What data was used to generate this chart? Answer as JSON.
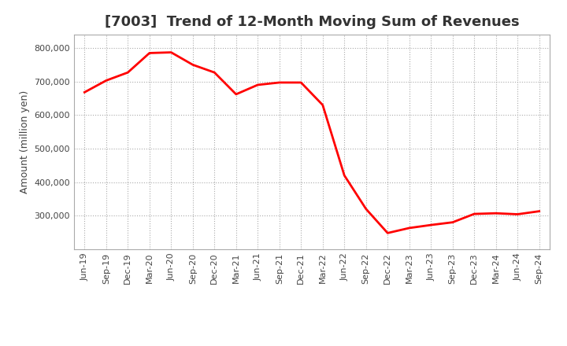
{
  "title": "[7003]  Trend of 12-Month Moving Sum of Revenues",
  "ylabel": "Amount (million yen)",
  "line_color": "#FF0000",
  "line_width": 2.0,
  "background_color": "#FFFFFF",
  "grid_color": "#AAAAAA",
  "xlabels": [
    "Jun-19",
    "Sep-19",
    "Dec-19",
    "Mar-20",
    "Jun-20",
    "Sep-20",
    "Dec-20",
    "Mar-21",
    "Jun-21",
    "Sep-21",
    "Dec-21",
    "Mar-22",
    "Jun-22",
    "Sep-22",
    "Dec-22",
    "Mar-23",
    "Jun-23",
    "Sep-23",
    "Dec-23",
    "Mar-24",
    "Jun-24",
    "Sep-24"
  ],
  "values": [
    668000,
    703000,
    727000,
    785000,
    787000,
    750000,
    727000,
    662000,
    690000,
    697000,
    697000,
    630000,
    420000,
    320000,
    248000,
    263000,
    272000,
    280000,
    305000,
    307000,
    304000,
    313000
  ],
  "ylim": [
    200000,
    840000
  ],
  "yticks": [
    300000,
    400000,
    500000,
    600000,
    700000,
    800000
  ],
  "title_fontsize": 13,
  "tick_fontsize": 8,
  "ylabel_fontsize": 9
}
